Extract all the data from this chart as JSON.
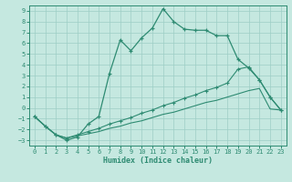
{
  "xlabel": "Humidex (Indice chaleur)",
  "line_color": "#2e8b72",
  "bg_color": "#c5e8e0",
  "grid_color": "#9dcec5",
  "xlim": [
    -0.5,
    23.5
  ],
  "ylim": [
    -3.5,
    9.5
  ],
  "xticks": [
    0,
    1,
    2,
    3,
    4,
    5,
    6,
    7,
    8,
    9,
    10,
    11,
    12,
    13,
    14,
    15,
    16,
    17,
    18,
    19,
    20,
    21,
    22,
    23
  ],
  "yticks": [
    -3,
    -2,
    -1,
    0,
    1,
    2,
    3,
    4,
    5,
    6,
    7,
    8,
    9
  ],
  "jagged_x": [
    0,
    1,
    2,
    3,
    4,
    5,
    6,
    7,
    8,
    9,
    10,
    11,
    12,
    13,
    14,
    15,
    16,
    17,
    18,
    19,
    20,
    21,
    22,
    23
  ],
  "jagged_y": [
    -0.8,
    -1.7,
    -2.5,
    -3.0,
    -2.7,
    -1.5,
    -0.8,
    3.2,
    6.3,
    5.3,
    6.5,
    7.4,
    9.2,
    8.0,
    7.3,
    7.2,
    7.2,
    6.7,
    6.7,
    4.5,
    3.7,
    2.6,
    1.0,
    -0.2
  ],
  "mid_diag_x": [
    0,
    1,
    2,
    3,
    4,
    5,
    6,
    7,
    8,
    9,
    10,
    11,
    12,
    13,
    14,
    15,
    16,
    17,
    18,
    19,
    20,
    21,
    22,
    23
  ],
  "mid_diag_y": [
    -0.8,
    -1.7,
    -2.5,
    -2.8,
    -2.5,
    -2.2,
    -1.9,
    -1.5,
    -1.2,
    -0.9,
    -0.5,
    -0.2,
    0.2,
    0.5,
    0.9,
    1.2,
    1.6,
    1.9,
    2.3,
    3.6,
    3.8,
    2.6,
    1.0,
    -0.2
  ],
  "low_diag_x": [
    0,
    1,
    2,
    3,
    4,
    5,
    6,
    7,
    8,
    9,
    10,
    11,
    12,
    13,
    14,
    15,
    16,
    17,
    18,
    19,
    20,
    21,
    22,
    23
  ],
  "low_diag_y": [
    -0.8,
    -1.7,
    -2.5,
    -2.8,
    -2.6,
    -2.4,
    -2.2,
    -1.9,
    -1.7,
    -1.4,
    -1.2,
    -0.9,
    -0.6,
    -0.4,
    -0.1,
    0.2,
    0.5,
    0.7,
    1.0,
    1.3,
    1.6,
    1.8,
    -0.1,
    -0.2
  ]
}
